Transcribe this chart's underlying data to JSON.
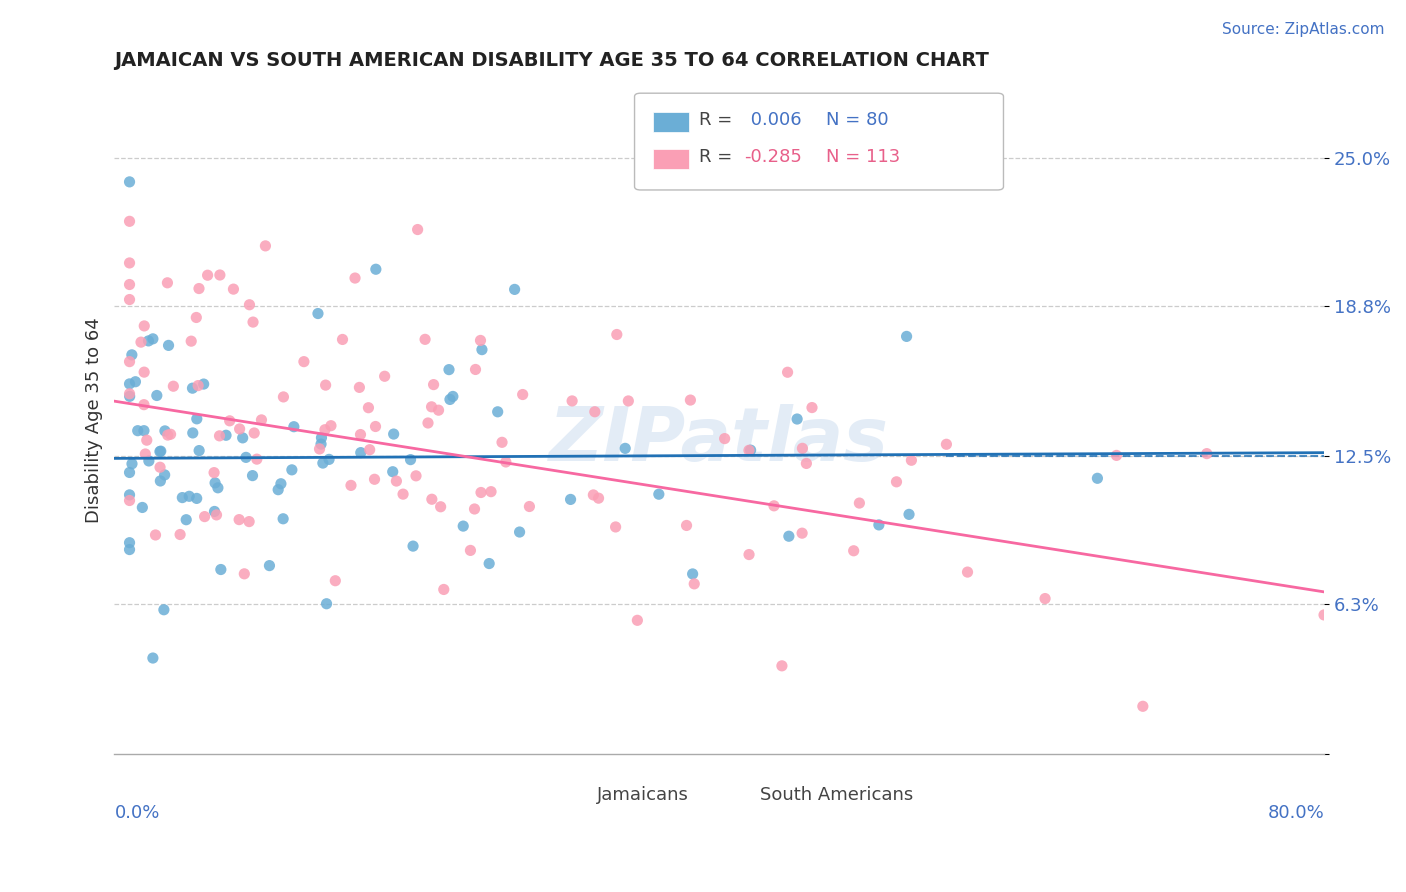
{
  "title": "JAMAICAN VS SOUTH AMERICAN DISABILITY AGE 35 TO 64 CORRELATION CHART",
  "source": "Source: ZipAtlas.com",
  "ylabel": "Disability Age 35 to 64",
  "xmin": 0.0,
  "xmax": 0.8,
  "ymin": 0.0,
  "ymax": 0.28,
  "jamaicans_color": "#6baed6",
  "south_americans_color": "#fa9fb5",
  "jamaican_line_color": "#2171b5",
  "south_american_line_color": "#f768a1",
  "grid_color": "#cccccc",
  "tick_color": "#4472c4",
  "background_color": "#ffffff",
  "watermark": "ZIPatlas",
  "legend_r1_label": "R = ",
  "legend_r1_value": " 0.006",
  "legend_n1": "N = 80",
  "legend_r2_label": "R = ",
  "legend_r2_value": "-0.285",
  "legend_n2": "N = 113",
  "legend_color_blue": "#4472c4",
  "legend_color_pink": "#e8608a",
  "bottom_legend_jam": "Jamaicans",
  "bottom_legend_sa": "South Americans",
  "dashed_line_y": 0.125,
  "jam_reg_slope": 0.003,
  "jam_reg_intercept": 0.124,
  "sa_reg_slope": -0.1,
  "sa_reg_intercept": 0.148,
  "y_tick_vals": [
    0.0,
    0.063,
    0.125,
    0.188,
    0.25
  ],
  "y_tick_labels": [
    "",
    "6.3%",
    "12.5%",
    "18.8%",
    "25.0%"
  ]
}
